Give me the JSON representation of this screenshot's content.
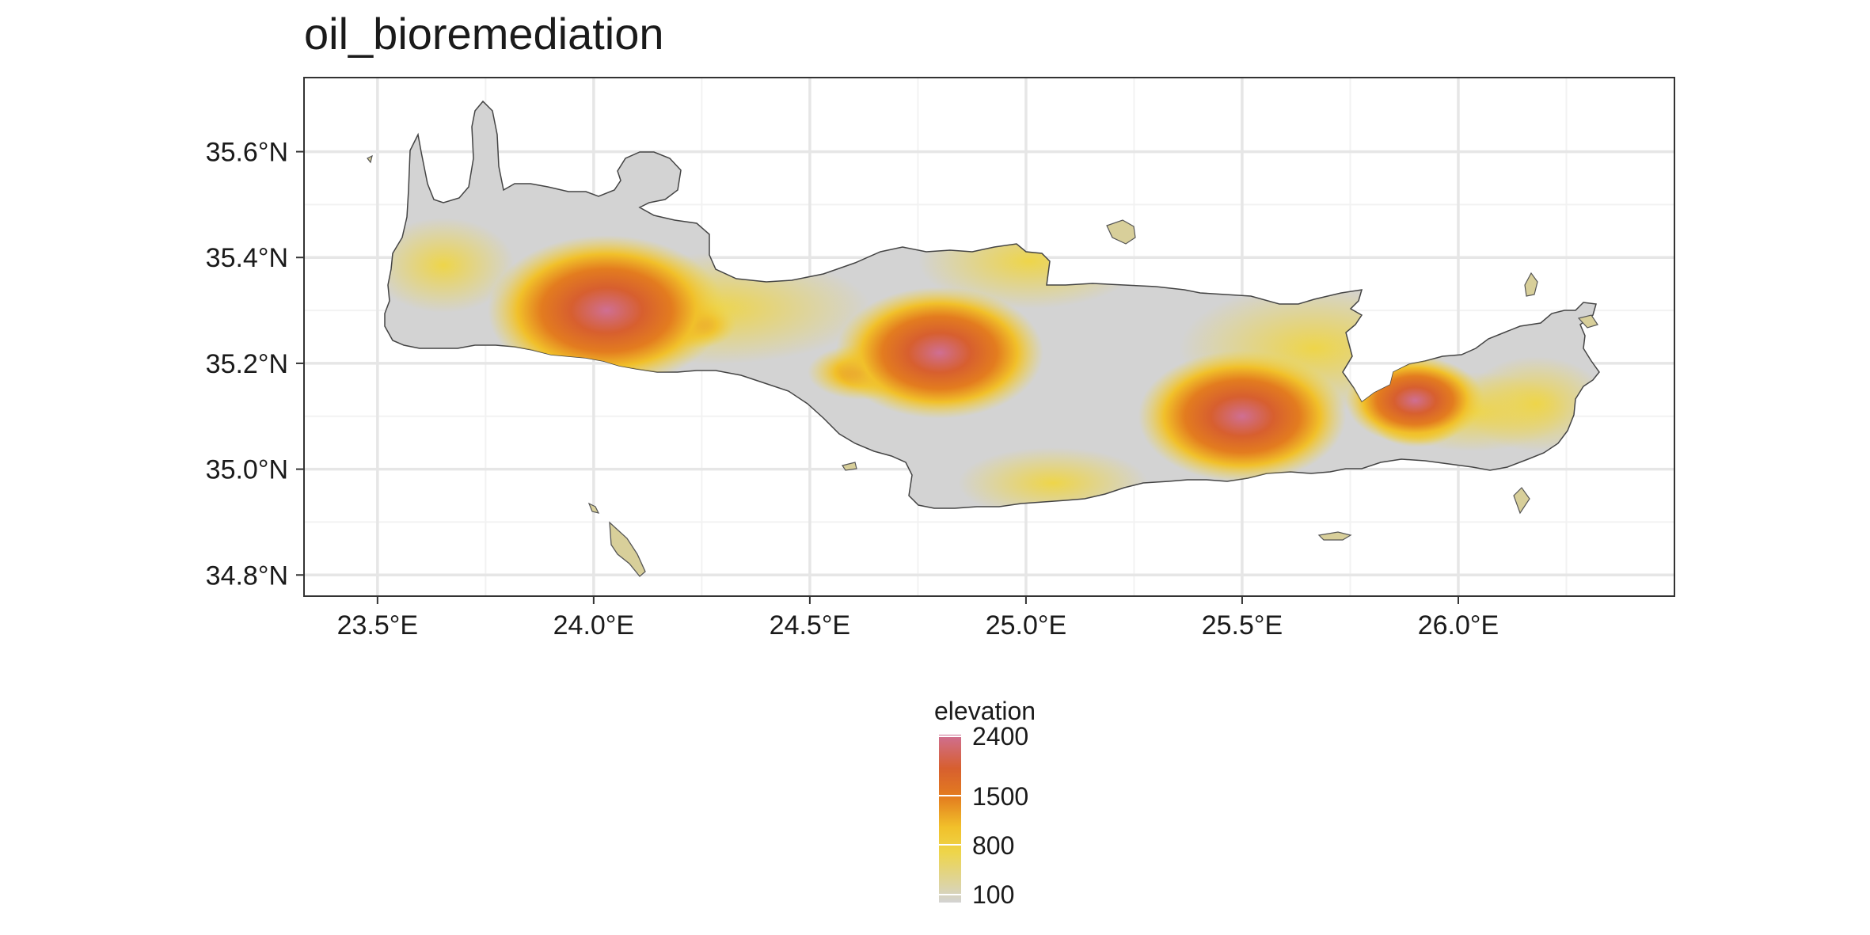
{
  "title": "oil_bioremediation",
  "axes": {
    "x_ticks": [
      "23.5°E",
      "24.0°E",
      "24.5°E",
      "25.0°E",
      "25.5°E",
      "26.0°E"
    ],
    "y_ticks": [
      "35.6°N",
      "35.4°N",
      "35.2°N",
      "35.0°N",
      "34.8°N"
    ]
  },
  "legend": {
    "title": "elevation",
    "labels": [
      "2400",
      "1500",
      "800",
      "100"
    ]
  },
  "chart_data": {
    "type": "heatmap",
    "title": "oil_bioremediation",
    "x_range_deg_e": [
      23.33,
      26.5
    ],
    "y_range_deg_n": [
      34.76,
      35.74
    ],
    "x_tick_values": [
      23.5,
      24.0,
      24.5,
      25.0,
      25.5,
      26.0
    ],
    "y_tick_values": [
      35.6,
      35.4,
      35.2,
      35.0,
      34.8
    ],
    "grid": true,
    "legend_position": "bottom",
    "color_scale": {
      "name": "elevation",
      "breaks": [
        100,
        800,
        1500,
        2400
      ],
      "colors": [
        "#d3d3d3",
        "#eed54a",
        "#e37c1f",
        "#cf6f93"
      ]
    },
    "peaks": [
      {
        "lon": 24.03,
        "lat": 35.3,
        "elevation": 2400
      },
      {
        "lon": 24.8,
        "lat": 35.22,
        "elevation": 2100
      },
      {
        "lon": 25.5,
        "lat": 35.1,
        "elevation": 2100
      },
      {
        "lon": 25.9,
        "lat": 35.13,
        "elevation": 1400
      }
    ]
  }
}
